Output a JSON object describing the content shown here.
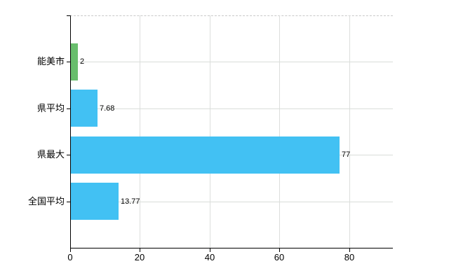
{
  "chart_data": {
    "type": "bar",
    "orientation": "horizontal",
    "title": "",
    "xlabel": "",
    "ylabel": "",
    "categories": [
      "能美市",
      "県平均",
      "県最大",
      "全国平均"
    ],
    "values": [
      2,
      7.68,
      77,
      13.77
    ],
    "value_labels": [
      "2",
      "7.68",
      "77",
      "13.77"
    ],
    "bar_colors": [
      "#68be6c",
      "#42c1f3",
      "#42c1f3",
      "#42c1f3"
    ],
    "x_ticks": [
      0,
      20,
      40,
      60,
      80
    ],
    "x_tick_labels": [
      "0",
      "20",
      "40",
      "60",
      "80"
    ],
    "xlim": [
      0,
      92.5
    ],
    "grid": true,
    "legend": "none",
    "colors": {
      "background": "#ffffff",
      "axis": "#000000",
      "grid": "#d9ddd9",
      "plot_top_border": "#c9c9c9",
      "text": "#000000",
      "bar_blue": "#42c1f3",
      "bar_green": "#68be6c"
    }
  }
}
